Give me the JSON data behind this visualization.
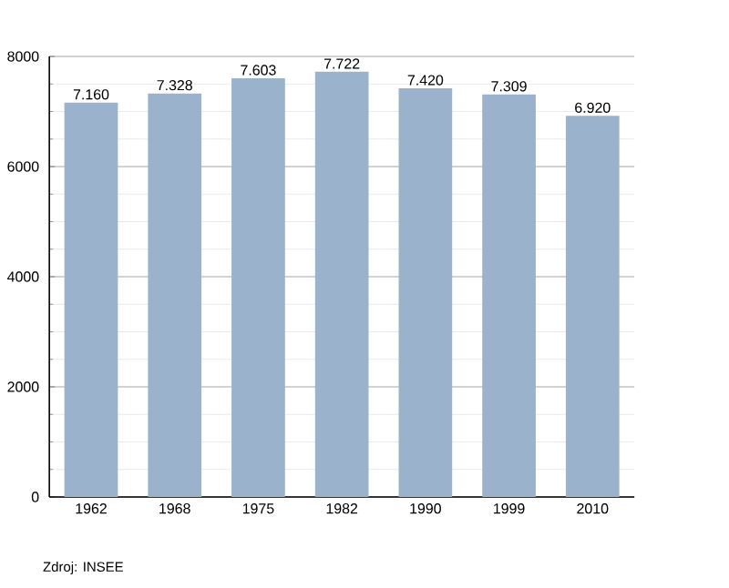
{
  "chart_data": {
    "type": "bar",
    "categories": [
      "1962",
      "1968",
      "1975",
      "1982",
      "1990",
      "1999",
      "2010"
    ],
    "values": [
      7160,
      7328,
      7603,
      7722,
      7420,
      7309,
      6920
    ],
    "value_labels": [
      "7.160",
      "7.328",
      "7.603",
      "7.722",
      "7.420",
      "7.309",
      "6.920"
    ],
    "color": "#9ab2cc",
    "ylim": [
      0,
      8000
    ],
    "yticks": [
      0,
      2000,
      4000,
      6000,
      8000
    ],
    "grid": "y",
    "annotations": [
      "Zdroj: INSEE"
    ]
  }
}
